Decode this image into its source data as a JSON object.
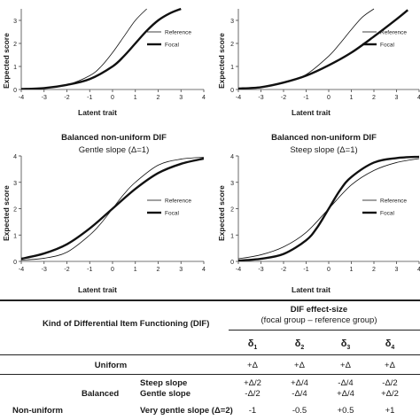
{
  "chart_data": [
    {
      "type": "line",
      "title": "",
      "subtitle": "",
      "xlabel": "Latent trait",
      "ylabel": "Expected score",
      "xlim": [
        -4,
        4
      ],
      "ylim": [
        0,
        3.5
      ],
      "xticks": [
        -4,
        -3,
        -2,
        -1,
        0,
        1,
        2,
        3,
        4
      ],
      "yticks": [
        0,
        1,
        2,
        3
      ],
      "legend_position": "right",
      "series": [
        {
          "name": "Reference",
          "style": "thin",
          "x": [
            -4,
            -3,
            -2,
            -1,
            -0.5,
            0,
            0.5,
            1,
            1.5
          ],
          "y": [
            0.02,
            0.06,
            0.2,
            0.6,
            1.0,
            1.6,
            2.3,
            3.0,
            3.5
          ]
        },
        {
          "name": "Focal",
          "style": "thick",
          "x": [
            -4,
            -3,
            -2,
            -1,
            0,
            0.5,
            1,
            1.5,
            2,
            2.5,
            3
          ],
          "y": [
            0.02,
            0.06,
            0.2,
            0.45,
            1.0,
            1.45,
            2.0,
            2.55,
            3.0,
            3.3,
            3.5
          ]
        }
      ]
    },
    {
      "type": "line",
      "title": "",
      "subtitle": "",
      "xlabel": "Latent trait",
      "ylabel": "Expected score",
      "xlim": [
        -4,
        4
      ],
      "ylim": [
        0,
        3.5
      ],
      "xticks": [
        -4,
        -3,
        -2,
        -1,
        0,
        1,
        2,
        3,
        4
      ],
      "yticks": [
        0,
        1,
        2,
        3
      ],
      "legend_position": "right",
      "series": [
        {
          "name": "Reference",
          "style": "thin",
          "x": [
            -4,
            -3,
            -2,
            -1,
            0,
            0.5,
            1,
            1.5,
            2
          ],
          "y": [
            0.04,
            0.1,
            0.28,
            0.65,
            1.45,
            2.0,
            2.6,
            3.15,
            3.5
          ]
        },
        {
          "name": "Focal",
          "style": "thick",
          "x": [
            -4,
            -3,
            -2,
            -1,
            0,
            1,
            2,
            3,
            3.5
          ],
          "y": [
            0.04,
            0.1,
            0.3,
            0.6,
            1.05,
            1.6,
            2.3,
            3.05,
            3.45
          ]
        }
      ]
    },
    {
      "type": "line",
      "title": "Balanced non-uniform DIF",
      "subtitle": "Gentle slope (Δ=1)",
      "xlabel": "Latent trait",
      "ylabel": "Expected score",
      "xlim": [
        -4,
        4
      ],
      "ylim": [
        0,
        4
      ],
      "xticks": [
        -4,
        -3,
        -2,
        -1,
        0,
        1,
        2,
        3,
        4
      ],
      "yticks": [
        0,
        1,
        2,
        3,
        4
      ],
      "legend_position": "right",
      "series": [
        {
          "name": "Reference",
          "style": "thin",
          "x": [
            -4,
            -3,
            -2,
            -1,
            -0.5,
            0,
            0.5,
            1,
            2,
            3,
            4
          ],
          "y": [
            0.05,
            0.12,
            0.35,
            1.0,
            1.45,
            2.0,
            2.55,
            3.0,
            3.65,
            3.88,
            3.95
          ]
        },
        {
          "name": "Focal",
          "style": "thick",
          "x": [
            -4,
            -3,
            -2,
            -1,
            0,
            1,
            2,
            3,
            4
          ],
          "y": [
            0.1,
            0.3,
            0.65,
            1.25,
            2.0,
            2.75,
            3.35,
            3.7,
            3.9
          ]
        }
      ]
    },
    {
      "type": "line",
      "title": "Balanced non-uniform DIF",
      "subtitle": "Steep slope (Δ=1)",
      "xlabel": "Latent trait",
      "ylabel": "Expected score",
      "xlim": [
        -4,
        4
      ],
      "ylim": [
        0,
        4
      ],
      "xticks": [
        -4,
        -3,
        -2,
        -1,
        0,
        1,
        2,
        3,
        4
      ],
      "yticks": [
        0,
        1,
        2,
        3,
        4
      ],
      "legend_position": "right",
      "series": [
        {
          "name": "Reference",
          "style": "thin",
          "x": [
            -4,
            -3,
            -2,
            -1,
            0,
            1,
            2,
            3,
            4
          ],
          "y": [
            0.1,
            0.25,
            0.55,
            1.1,
            2.0,
            2.9,
            3.45,
            3.75,
            3.9
          ]
        },
        {
          "name": "Focal",
          "style": "thick",
          "x": [
            -4,
            -3,
            -2,
            -1,
            -0.5,
            0,
            0.5,
            1,
            2,
            3,
            4
          ],
          "y": [
            0.03,
            0.1,
            0.28,
            0.8,
            1.3,
            2.0,
            2.7,
            3.2,
            3.75,
            3.92,
            3.97
          ]
        }
      ]
    }
  ],
  "table": {
    "kind_header": "Kind of Differential Item Functioning (DIF)",
    "effect_header": "DIF effect-size",
    "effect_subheader": "(focal group – reference group)",
    "deltas": [
      "δ",
      "δ",
      "δ",
      "δ"
    ],
    "delta_subs": [
      "1",
      "2",
      "3",
      "4"
    ],
    "rows": [
      {
        "group": "Uniform",
        "subgroup": "",
        "kind": "",
        "values": [
          "+Δ",
          "+Δ",
          "+Δ",
          "+Δ"
        ]
      },
      {
        "group": "",
        "subgroup": "",
        "kind": "Steep slope",
        "values": [
          "+Δ/2",
          "+Δ/4",
          "-Δ/4",
          "-Δ/2"
        ]
      },
      {
        "group": "",
        "subgroup": "Balanced",
        "kind": "Gentle slope",
        "values": [
          "-Δ/2",
          "-Δ/4",
          "+Δ/4",
          "+Δ/2"
        ]
      },
      {
        "group": "Non-uniform",
        "subgroup": "",
        "kind": "Very gentle slope (Δ=2)",
        "values": [
          "-1",
          "-0.5",
          "+0.5",
          "+1"
        ]
      }
    ]
  }
}
